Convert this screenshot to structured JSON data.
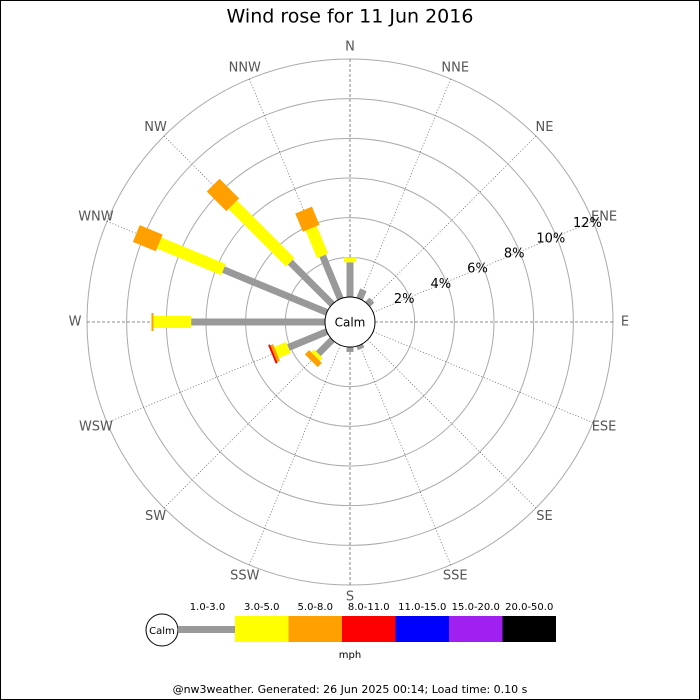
{
  "chart_data": {
    "type": "windrose",
    "title": "Wind rose for 11 Jun 2016",
    "categories": [
      "N",
      "NNE",
      "NE",
      "ENE",
      "E",
      "ESE",
      "SE",
      "SSE",
      "S",
      "SSW",
      "SW",
      "WSW",
      "W",
      "WNW",
      "NW",
      "NNW"
    ],
    "series": [
      {
        "name": "1.0-3.0",
        "color": "#999999",
        "values": [
          1.75,
          0.5,
          0.3,
          0,
          0,
          0,
          0,
          0.2,
          0.25,
          0,
          1.0,
          2.1,
          6.75,
          5.65,
          3.0,
          2.35
        ]
      },
      {
        "name": "3.0-5.0",
        "color": "#ffff00",
        "values": [
          0.25,
          0,
          0,
          0,
          0,
          0,
          0,
          0,
          0,
          0,
          0.2,
          0.65,
          1.9,
          3.5,
          4.1,
          1.5
        ]
      },
      {
        "name": "5.0-8.0",
        "color": "#ffa000",
        "values": [
          0,
          0,
          0,
          0,
          0,
          0,
          0,
          0,
          0,
          0,
          0.3,
          0.15,
          0.1,
          1.25,
          1.4,
          1.0
        ]
      },
      {
        "name": "8.0-11.0",
        "color": "#ff0000",
        "values": [
          0,
          0,
          0,
          0,
          0,
          0,
          0,
          0,
          0,
          0,
          0,
          0.1,
          0,
          0,
          0,
          0
        ]
      },
      {
        "name": "11.0-15.0",
        "color": "#0000ff",
        "values": [
          0,
          0,
          0,
          0,
          0,
          0,
          0,
          0,
          0,
          0,
          0,
          0,
          0,
          0,
          0,
          0
        ]
      },
      {
        "name": "15.0-20.0",
        "color": "#a020f0",
        "values": [
          0,
          0,
          0,
          0,
          0,
          0,
          0,
          0,
          0,
          0,
          0,
          0,
          0,
          0,
          0,
          0
        ]
      },
      {
        "name": "20.0-50.0",
        "color": "#000000",
        "values": [
          0,
          0,
          0,
          0,
          0,
          0,
          0,
          0,
          0,
          0,
          0,
          0,
          0,
          0,
          0,
          0
        ]
      }
    ],
    "rlim": [
      0,
      12
    ],
    "rticks": [
      {
        "value": 2,
        "label": "2%"
      },
      {
        "value": 4,
        "label": "4%"
      },
      {
        "value": 6,
        "label": "6%"
      },
      {
        "value": 8,
        "label": "8%"
      },
      {
        "value": 10,
        "label": "10%"
      },
      {
        "value": 12,
        "label": "12%"
      }
    ],
    "calm_label": "Calm",
    "unit": "mph",
    "footer": "@nw3weather. Generated: 26 Jun 2025 00:14; Load time: 0.10 s"
  }
}
